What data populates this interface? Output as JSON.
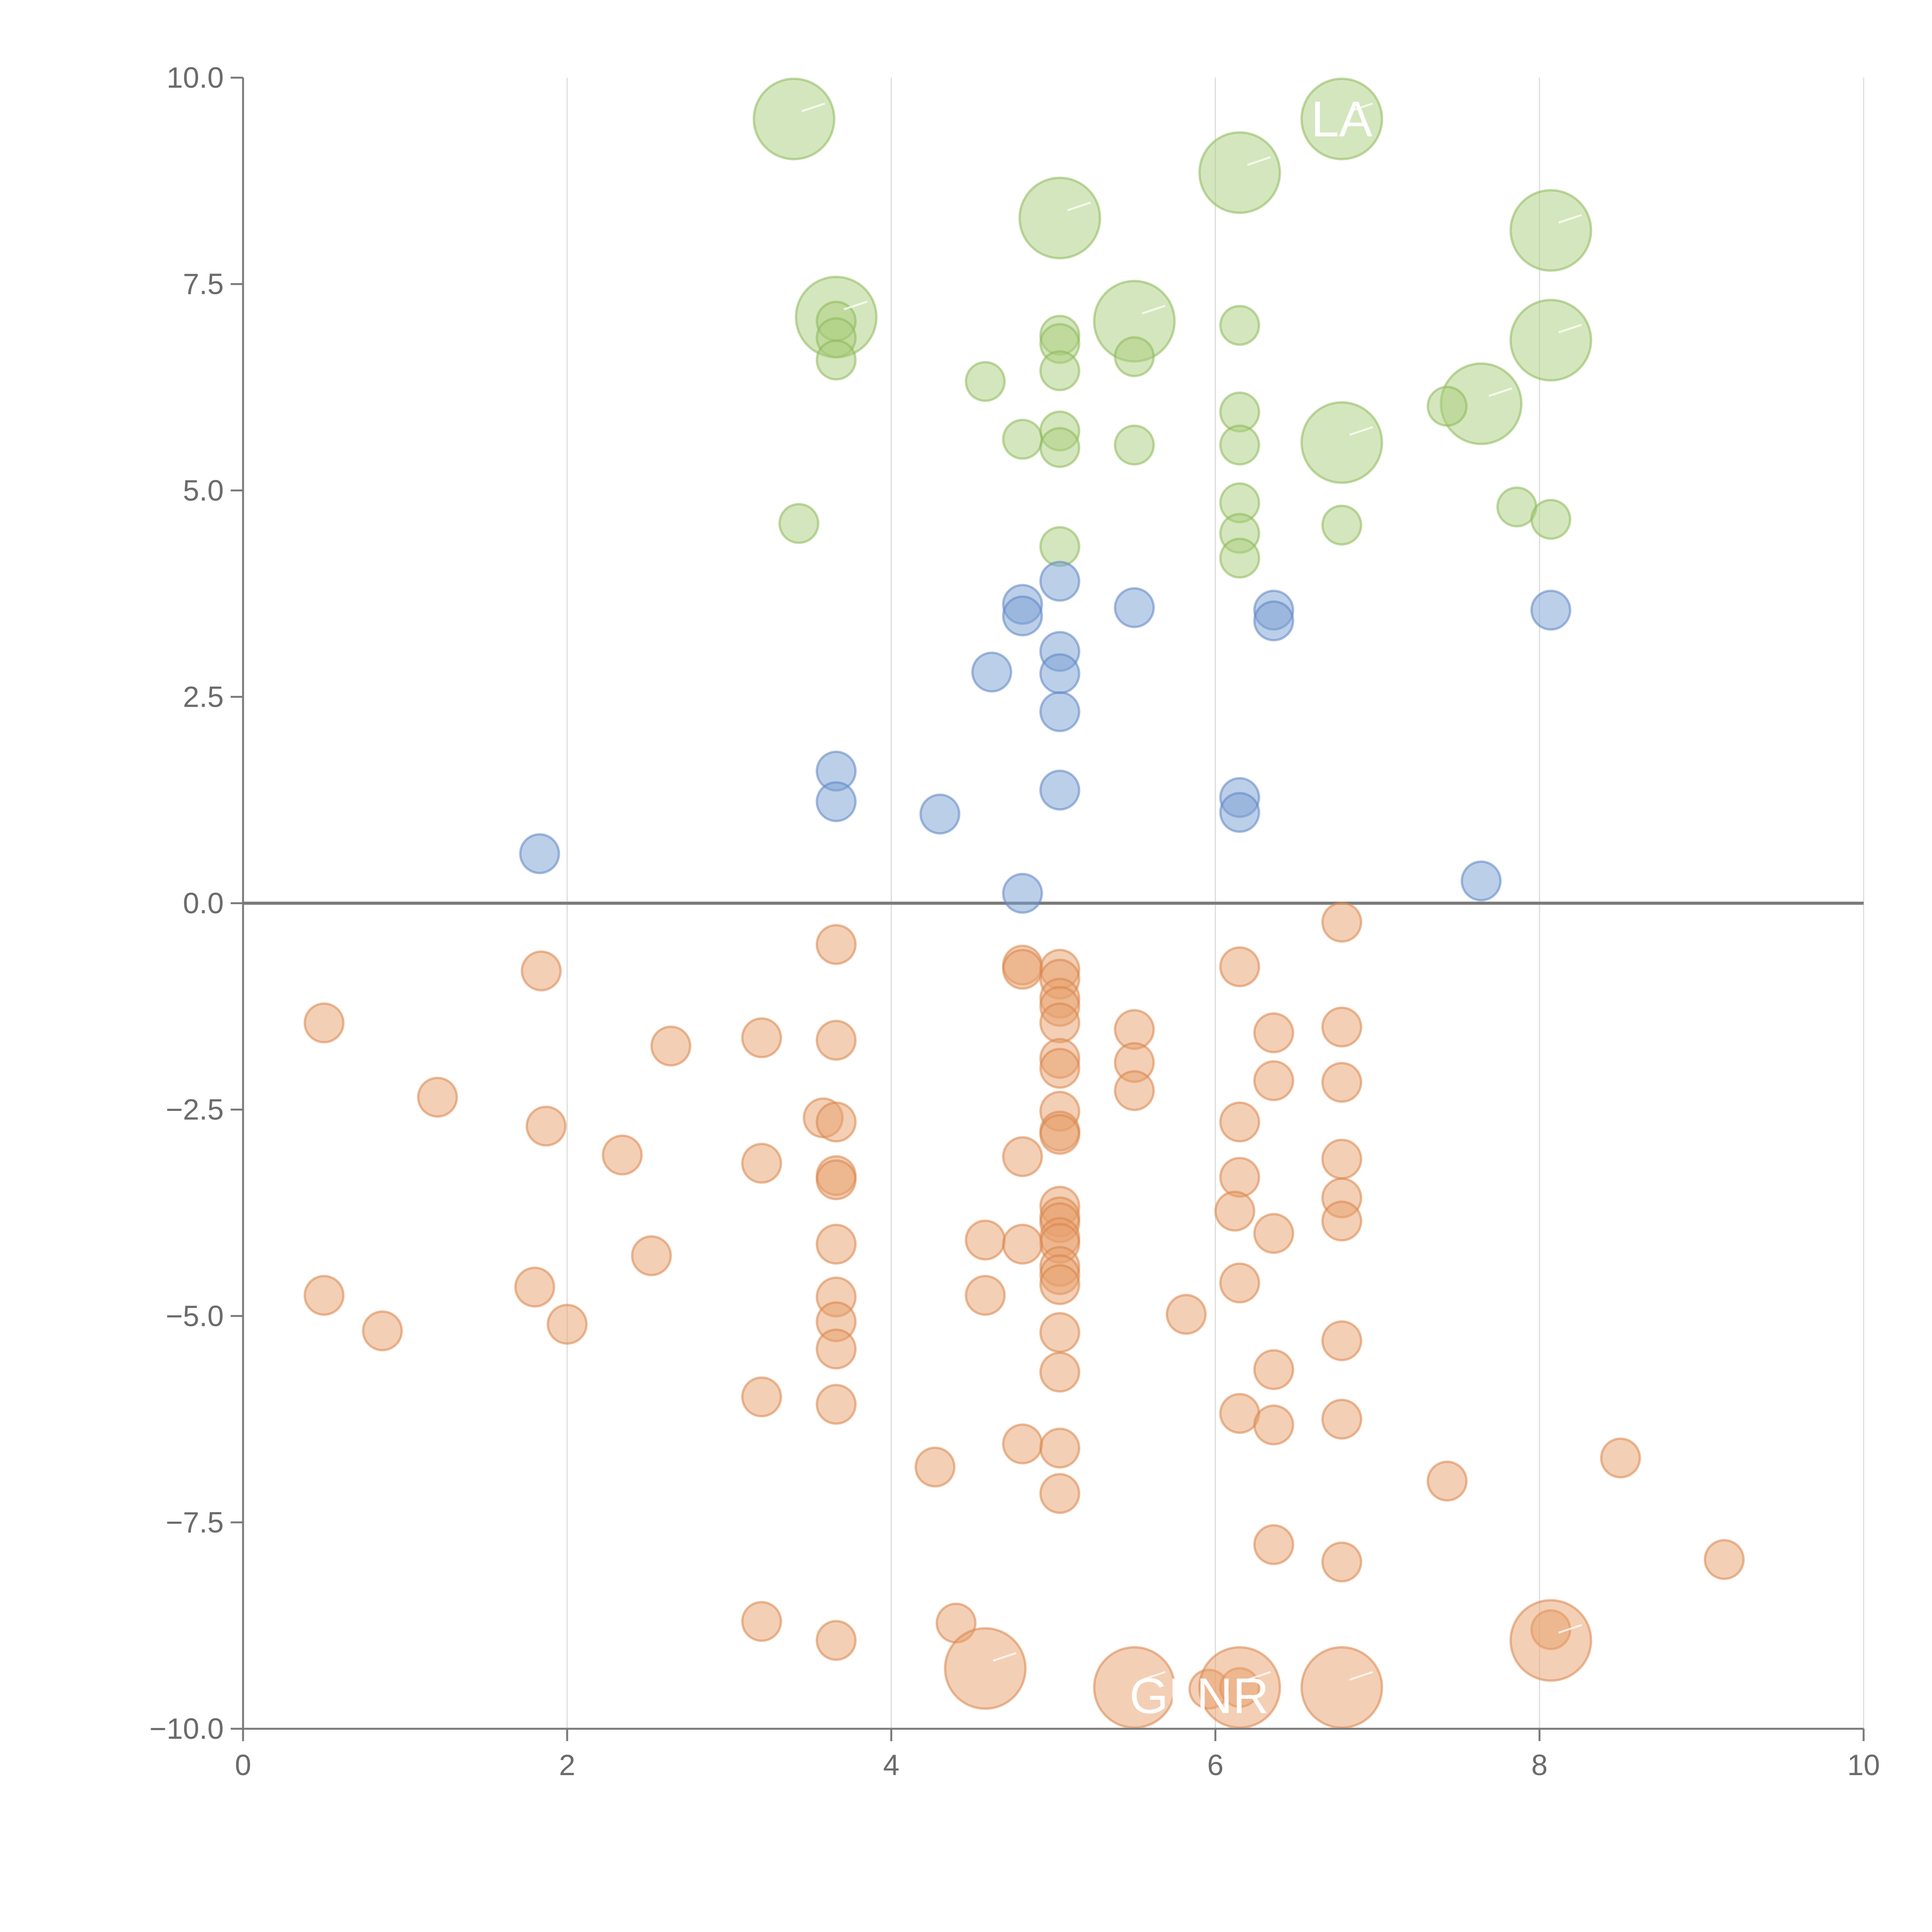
{
  "chart_data": {
    "type": "scatter",
    "title": "",
    "xlabel": "",
    "ylabel": "",
    "xlim": [
      0,
      10
    ],
    "ylim": [
      -10,
      10
    ],
    "x_ticks": [
      "0",
      "2",
      "4",
      "6",
      "8",
      "10"
    ],
    "y_ticks": [
      "10.0",
      "7.5",
      "5.0",
      "2.5",
      "0.0",
      "−2.5",
      "−5.0",
      "−7.5",
      "−10.0"
    ],
    "x_tick_values": [
      0,
      2,
      4,
      6,
      8,
      10
    ],
    "y_tick_values": [
      10,
      7.5,
      5,
      2.5,
      0,
      -2.5,
      -5,
      -7.5,
      -10
    ],
    "vertical_grid": true,
    "zero_line": true,
    "colors": {
      "high": "#a9cd7b",
      "mid": "#7a9fd4",
      "low": "#e8a06b",
      "high_stroke": "#8cb85a",
      "mid_stroke": "#5c85c2",
      "low_stroke": "#d9854a",
      "axis": "#7a7a7a",
      "grid": "#dcdcdc",
      "label": "#ffffff"
    },
    "labels": [
      {
        "text": "LA",
        "x": 6.78,
        "y": 9.5
      },
      {
        "text": "GLNR",
        "x": 5.9,
        "y": -9.6
      }
    ],
    "series": [
      {
        "name": "high",
        "color": "#a9cd7b",
        "points": [
          [
            3.4,
            9.5,
            2
          ],
          [
            6.78,
            9.5,
            2
          ],
          [
            6.15,
            8.85,
            2
          ],
          [
            5.04,
            8.3,
            2
          ],
          [
            8.07,
            8.15,
            2
          ],
          [
            3.66,
            7.1,
            2
          ],
          [
            5.5,
            7.05,
            2
          ],
          [
            8.07,
            6.82,
            2
          ],
          [
            6.78,
            5.58,
            2
          ],
          [
            7.64,
            6.05,
            2
          ],
          [
            3.66,
            7.05,
            1
          ],
          [
            3.66,
            6.85,
            1
          ],
          [
            3.66,
            6.58,
            1
          ],
          [
            6.15,
            7.0,
            1
          ],
          [
            5.04,
            6.88,
            1
          ],
          [
            5.04,
            6.78,
            1
          ],
          [
            5.04,
            6.45,
            1
          ],
          [
            5.5,
            6.62,
            1
          ],
          [
            4.58,
            6.32,
            1
          ],
          [
            6.15,
            5.95,
            1
          ],
          [
            6.15,
            5.55,
            1
          ],
          [
            4.81,
            5.62,
            1
          ],
          [
            5.04,
            5.72,
            1
          ],
          [
            5.04,
            5.52,
            1
          ],
          [
            5.5,
            5.55,
            1
          ],
          [
            7.43,
            6.02,
            1
          ],
          [
            3.43,
            4.6,
            1
          ],
          [
            6.15,
            4.85,
            1
          ],
          [
            6.15,
            4.48,
            1
          ],
          [
            6.15,
            4.18,
            1
          ],
          [
            5.04,
            4.32,
            1
          ],
          [
            6.78,
            4.58,
            1
          ],
          [
            7.86,
            4.8,
            1
          ],
          [
            8.07,
            4.65,
            1
          ]
        ]
      },
      {
        "name": "mid",
        "color": "#7a9fd4",
        "points": [
          [
            5.04,
            3.9,
            1
          ],
          [
            4.81,
            3.62,
            1
          ],
          [
            4.81,
            3.48,
            1
          ],
          [
            5.5,
            3.58,
            1
          ],
          [
            6.36,
            3.55,
            1
          ],
          [
            6.36,
            3.42,
            1
          ],
          [
            8.07,
            3.55,
            1
          ],
          [
            5.04,
            3.05,
            1
          ],
          [
            4.62,
            2.8,
            1
          ],
          [
            5.04,
            2.78,
            1
          ],
          [
            5.04,
            2.32,
            1
          ],
          [
            3.66,
            1.6,
            1
          ],
          [
            3.66,
            1.23,
            1
          ],
          [
            4.3,
            1.08,
            1
          ],
          [
            5.04,
            1.37,
            1
          ],
          [
            6.15,
            1.28,
            1
          ],
          [
            6.15,
            1.1,
            1
          ],
          [
            1.83,
            0.6,
            1
          ],
          [
            4.81,
            0.12,
            1
          ],
          [
            7.64,
            0.27,
            1
          ]
        ]
      },
      {
        "name": "low",
        "color": "#e8a06b",
        "points": [
          [
            6.78,
            -0.23,
            1
          ],
          [
            3.66,
            -0.5,
            1
          ],
          [
            4.81,
            -0.75,
            1
          ],
          [
            4.81,
            -0.8,
            1
          ],
          [
            5.04,
            -0.8,
            1
          ],
          [
            5.04,
            -0.92,
            1
          ],
          [
            6.15,
            -0.77,
            1
          ],
          [
            1.84,
            -0.82,
            1
          ],
          [
            5.04,
            -1.15,
            1
          ],
          [
            5.04,
            -1.25,
            1
          ],
          [
            5.04,
            -1.45,
            1
          ],
          [
            0.5,
            -1.45,
            1
          ],
          [
            3.2,
            -1.63,
            1
          ],
          [
            3.66,
            -1.66,
            1
          ],
          [
            2.64,
            -1.73,
            1
          ],
          [
            5.5,
            -1.53,
            1
          ],
          [
            6.36,
            -1.57,
            1
          ],
          [
            6.78,
            -1.5,
            1
          ],
          [
            5.04,
            -1.88,
            1
          ],
          [
            5.04,
            -2.0,
            1
          ],
          [
            5.5,
            -1.93,
            1
          ],
          [
            6.36,
            -2.15,
            1
          ],
          [
            6.78,
            -2.17,
            1
          ],
          [
            1.2,
            -2.35,
            1
          ],
          [
            5.5,
            -2.27,
            1
          ],
          [
            5.04,
            -2.52,
            1
          ],
          [
            3.58,
            -2.6,
            1
          ],
          [
            3.66,
            -2.65,
            1
          ],
          [
            1.87,
            -2.7,
            1
          ],
          [
            6.15,
            -2.65,
            1
          ],
          [
            5.04,
            -2.76,
            1
          ],
          [
            5.04,
            -2.8,
            1
          ],
          [
            2.34,
            -3.05,
            1
          ],
          [
            3.2,
            -3.15,
            1
          ],
          [
            4.81,
            -3.07,
            1
          ],
          [
            6.78,
            -3.1,
            1
          ],
          [
            3.66,
            -3.3,
            1
          ],
          [
            3.66,
            -3.35,
            1
          ],
          [
            6.15,
            -3.32,
            1
          ],
          [
            6.78,
            -3.57,
            1
          ],
          [
            5.04,
            -3.67,
            1
          ],
          [
            5.04,
            -3.8,
            1
          ],
          [
            5.04,
            -3.87,
            1
          ],
          [
            6.12,
            -3.73,
            1
          ],
          [
            6.78,
            -3.85,
            1
          ],
          [
            6.36,
            -4.0,
            1
          ],
          [
            5.04,
            -4.05,
            1
          ],
          [
            5.04,
            -4.12,
            1
          ],
          [
            4.58,
            -4.08,
            1
          ],
          [
            4.81,
            -4.13,
            1
          ],
          [
            3.66,
            -4.13,
            1
          ],
          [
            2.52,
            -4.27,
            1
          ],
          [
            5.04,
            -4.4,
            1
          ],
          [
            5.04,
            -4.5,
            1
          ],
          [
            5.04,
            -4.62,
            1
          ],
          [
            1.8,
            -4.65,
            1
          ],
          [
            6.15,
            -4.6,
            1
          ],
          [
            0.5,
            -4.75,
            1
          ],
          [
            3.66,
            -4.77,
            1
          ],
          [
            4.58,
            -4.75,
            1
          ],
          [
            5.82,
            -4.98,
            1
          ],
          [
            3.66,
            -5.07,
            1
          ],
          [
            2.0,
            -5.1,
            1
          ],
          [
            0.86,
            -5.18,
            1
          ],
          [
            5.04,
            -5.2,
            1
          ],
          [
            6.78,
            -5.3,
            1
          ],
          [
            3.66,
            -5.4,
            1
          ],
          [
            5.04,
            -5.68,
            1
          ],
          [
            6.36,
            -5.65,
            1
          ],
          [
            3.2,
            -5.98,
            1
          ],
          [
            3.66,
            -6.07,
            1
          ],
          [
            6.15,
            -6.18,
            1
          ],
          [
            6.36,
            -6.32,
            1
          ],
          [
            6.78,
            -6.25,
            1
          ],
          [
            4.81,
            -6.55,
            1
          ],
          [
            5.04,
            -6.6,
            1
          ],
          [
            8.5,
            -6.72,
            1
          ],
          [
            4.27,
            -6.83,
            1
          ],
          [
            7.43,
            -7.0,
            1
          ],
          [
            5.04,
            -7.15,
            1
          ],
          [
            6.36,
            -7.77,
            1
          ],
          [
            6.78,
            -7.98,
            1
          ],
          [
            9.14,
            -7.95,
            1
          ],
          [
            3.2,
            -8.7,
            1
          ],
          [
            4.4,
            -8.72,
            1
          ],
          [
            3.66,
            -8.93,
            1
          ],
          [
            8.07,
            -8.8,
            1
          ],
          [
            5.96,
            -9.52,
            1
          ],
          [
            6.15,
            -9.5,
            1
          ],
          [
            8.07,
            -8.93,
            2
          ],
          [
            4.58,
            -9.27,
            2
          ],
          [
            5.5,
            -9.5,
            2
          ],
          [
            6.15,
            -9.5,
            2
          ],
          [
            6.78,
            -9.5,
            2
          ]
        ]
      }
    ]
  }
}
